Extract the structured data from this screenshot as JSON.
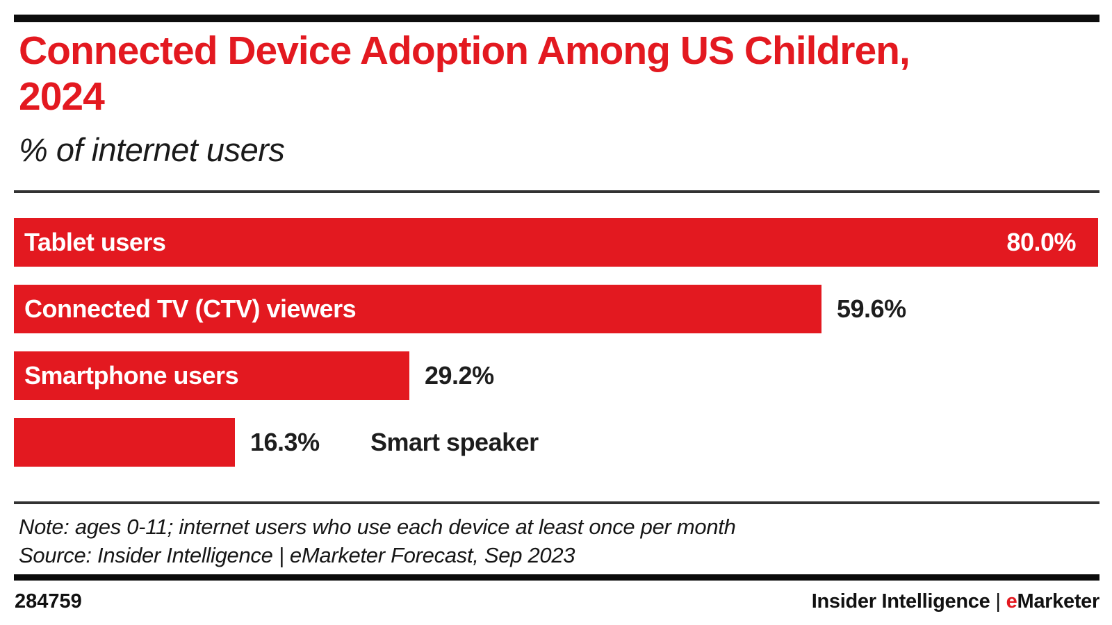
{
  "chart_data": {
    "type": "bar",
    "orientation": "horizontal",
    "title": "Connected Device Adoption Among US Children, 2024",
    "subtitle": "% of internet users",
    "categories": [
      "Tablet users",
      "Connected TV (CTV) viewers",
      "Smartphone users",
      "Smart speaker"
    ],
    "values": [
      80.0,
      59.6,
      29.2,
      16.3
    ],
    "value_labels": [
      "80.0%",
      "59.6%",
      "29.2%",
      "16.3%"
    ],
    "xlim": [
      0,
      80
    ],
    "grid": false,
    "legend": "none",
    "bar_color": "#e31920",
    "category_label_placement": [
      "inside-bar-white",
      "inside-bar-white",
      "inside-bar-white",
      "outside-right-black"
    ],
    "value_label_placement": [
      "inside-bar-right-white",
      "outside-right-black",
      "outside-right-black",
      "outside-right-black"
    ]
  },
  "header": {
    "title_line1": "Connected Device Adoption Among US Children,",
    "title_line2": "2024",
    "subtitle": "% of internet users"
  },
  "footnote": {
    "note": "Note: ages 0-11; internet users who use each device at least once per month",
    "source": "Source: Insider Intelligence | eMarketer Forecast, Sep 2023"
  },
  "footer": {
    "chart_id": "284759",
    "brand_left": "Insider Intelligence",
    "brand_separator": "|",
    "brand_e": "e",
    "brand_rest": "Marketer"
  },
  "colors": {
    "accent_red": "#e31920",
    "text_dark": "#1a1a1a",
    "rule_black": "#0d0d0d",
    "separator_gray": "#323232"
  }
}
